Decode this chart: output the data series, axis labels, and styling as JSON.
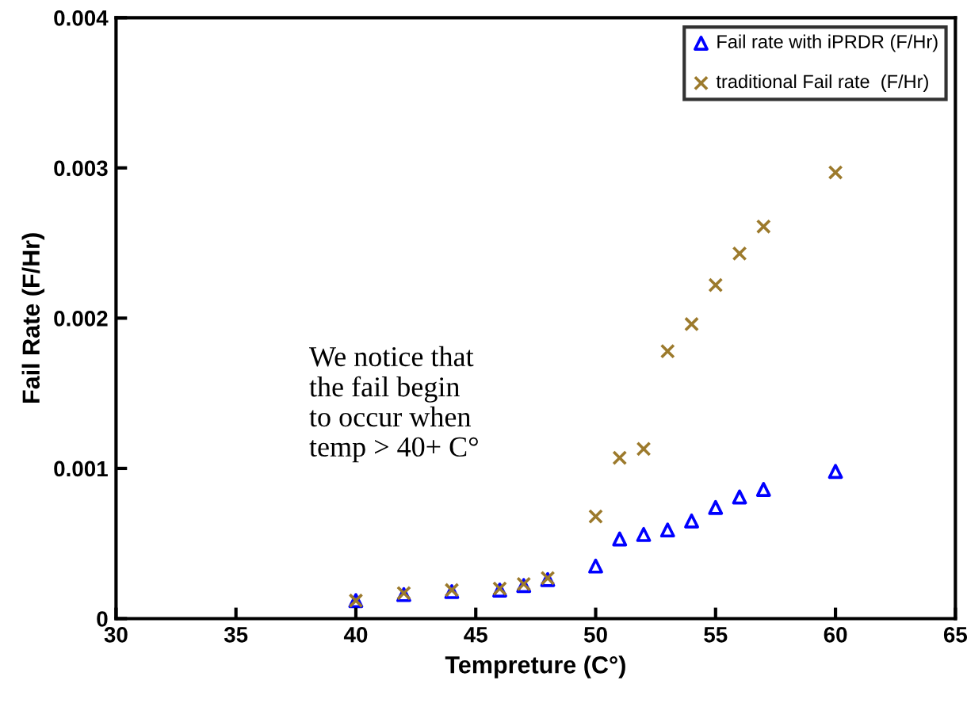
{
  "chart_data": {
    "type": "scatter",
    "xlabel": "Tempreture (C°)",
    "ylabel": "Fail Rate (F/Hr)",
    "x": [
      40,
      42,
      44,
      46,
      47,
      48,
      50,
      51,
      52,
      53,
      54,
      55,
      56,
      57,
      60
    ],
    "series": [
      {
        "name": "Fail rate with iPRDR (F/Hr)",
        "color": "#0000ff",
        "marker": "triangle",
        "values": [
          0.00012,
          0.00016,
          0.00018,
          0.00019,
          0.00022,
          0.00026,
          0.00035,
          0.00053,
          0.00056,
          0.00059,
          0.00065,
          0.00074,
          0.00081,
          0.00086,
          0.00098
        ]
      },
      {
        "name": "traditional Fail rate  (F/Hr)",
        "color": "#9c7a2c",
        "marker": "cross",
        "values": [
          0.00012,
          0.00017,
          0.00019,
          0.0002,
          0.00023,
          0.00027,
          0.00068,
          0.00107,
          0.00113,
          0.00178,
          0.00196,
          0.00222,
          0.00243,
          0.00261,
          0.00297
        ]
      }
    ],
    "xlim": [
      30,
      65
    ],
    "xticks": [
      30,
      35,
      40,
      45,
      50,
      55,
      60,
      65
    ],
    "ylim": [
      0,
      0.004
    ],
    "yticks": [
      0,
      {
        "value": 0.001,
        "label": "0.001"
      },
      {
        "value": 0.002,
        "label": "0.002"
      },
      {
        "value": 0.003,
        "label": "0.003"
      },
      {
        "value": 0.004,
        "label": "0.004"
      }
    ],
    "annotations": [
      "We notice that\nthe fail begin\nto occur when\ntemp > 40+ C°"
    ],
    "grid": false,
    "legend": "top right"
  }
}
